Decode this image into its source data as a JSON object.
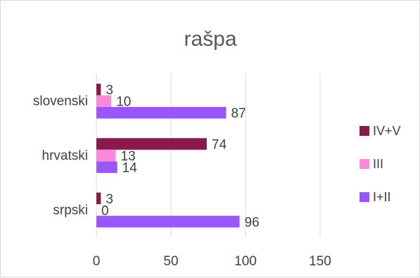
{
  "chart_data": {
    "type": "bar",
    "orientation": "horizontal",
    "title": "rašpa",
    "xlabel": "",
    "ylabel": "",
    "categories": [
      "slovenski",
      "hrvatski",
      "srpski"
    ],
    "series": [
      {
        "name": "IV+V",
        "color": "#8b1a4a",
        "values": [
          3,
          74,
          3
        ]
      },
      {
        "name": "III",
        "color": "#ff88dd",
        "values": [
          10,
          13,
          0
        ]
      },
      {
        "name": "I+II",
        "color": "#9955ff",
        "values": [
          87,
          14,
          96
        ]
      }
    ],
    "xlim": [
      0,
      150
    ],
    "xticks": [
      0,
      50,
      100,
      150
    ],
    "grid": true,
    "legend_position": "right"
  }
}
